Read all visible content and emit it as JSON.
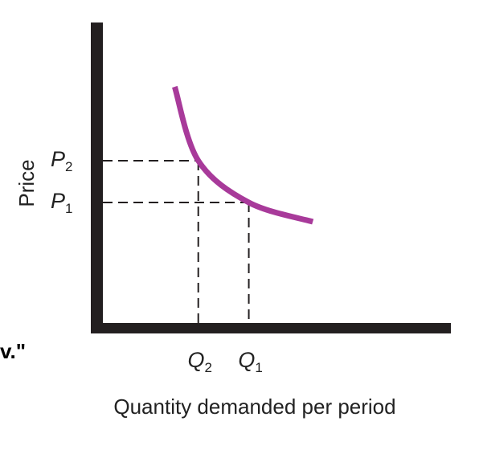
{
  "chart_data": {
    "type": "line",
    "xlabel": "Quantity demanded per period",
    "ylabel": "Price",
    "x_ticks": [
      {
        "name": "Q",
        "sub": "2",
        "x": 3.0
      },
      {
        "name": "Q",
        "sub": "1",
        "x": 4.5
      }
    ],
    "y_ticks": [
      {
        "name": "P",
        "sub": "2",
        "y": 5.2
      },
      {
        "name": "P",
        "sub": "1",
        "y": 3.9
      }
    ],
    "series": [
      {
        "color": "#a83a9a",
        "points": [
          [
            2.3,
            7.5
          ],
          [
            3.0,
            5.2
          ],
          [
            4.5,
            3.9
          ],
          [
            6.4,
            3.3
          ]
        ]
      }
    ],
    "xlim": [
      0,
      10.5
    ],
    "ylim": [
      0,
      9.5
    ],
    "guides": "dashed",
    "grid": false
  },
  "cut_text": "v.\""
}
